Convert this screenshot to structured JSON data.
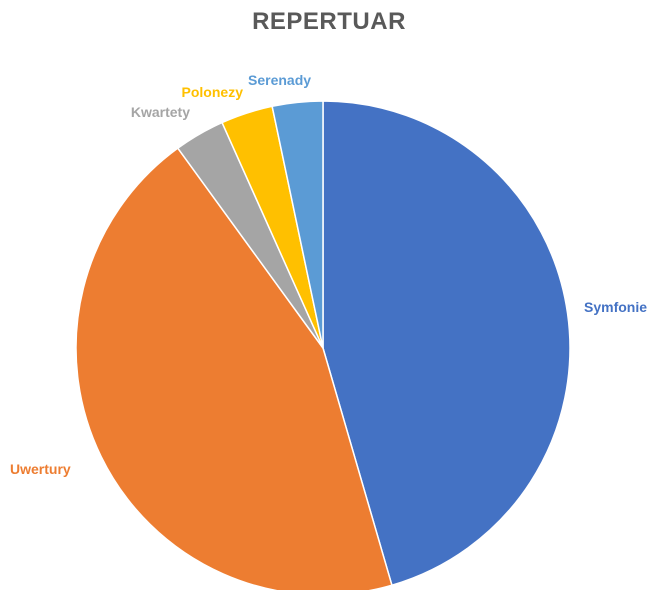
{
  "chart_data": {
    "type": "pie",
    "title": "REPERTUAR",
    "categories": [
      "Symfonie",
      "Uwertury",
      "Kwartety",
      "Polonezy",
      "Serenady"
    ],
    "values": [
      45.5,
      44.5,
      3.3,
      3.4,
      3.3
    ],
    "colors": [
      "#4472C4",
      "#ED7D31",
      "#A5A5A5",
      "#FFC000",
      "#5B9BD5"
    ]
  }
}
